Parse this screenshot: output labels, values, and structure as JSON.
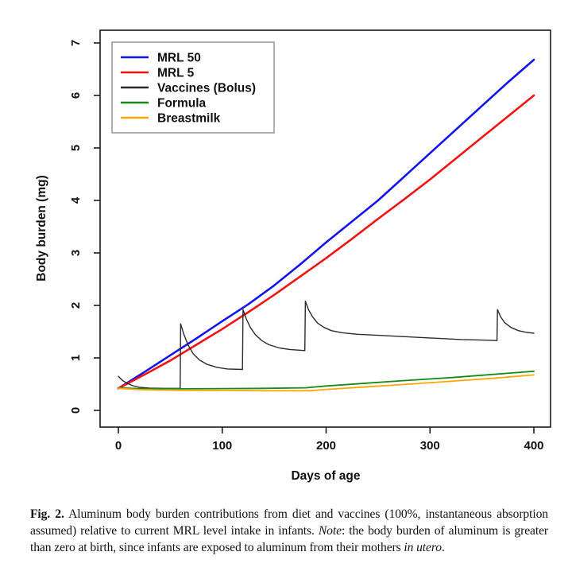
{
  "chart_data": {
    "type": "line",
    "title": "",
    "xlabel": "Days of age",
    "ylabel": "Body burden (mg)",
    "xlim": [
      0,
      400
    ],
    "ylim": [
      0,
      7
    ],
    "xticks": [
      0,
      100,
      200,
      300,
      400
    ],
    "yticks": [
      0,
      1,
      2,
      3,
      4,
      5,
      6,
      7
    ],
    "grid": false,
    "legend_position": "top-left",
    "series": [
      {
        "name": "MRL 50",
        "color": "#1414ee",
        "line_width": 2.6,
        "points": [
          [
            0,
            0.42
          ],
          [
            25,
            0.73
          ],
          [
            50,
            1.05
          ],
          [
            75,
            1.37
          ],
          [
            100,
            1.7
          ],
          [
            125,
            2.02
          ],
          [
            150,
            2.38
          ],
          [
            175,
            2.78
          ],
          [
            200,
            3.2
          ],
          [
            225,
            3.6
          ],
          [
            250,
            4.0
          ],
          [
            275,
            4.45
          ],
          [
            300,
            4.9
          ],
          [
            325,
            5.35
          ],
          [
            350,
            5.8
          ],
          [
            375,
            6.25
          ],
          [
            400,
            6.68
          ]
        ]
      },
      {
        "name": "MRL 5",
        "color": "#f01414",
        "line_width": 2.6,
        "points": [
          [
            0,
            0.42
          ],
          [
            25,
            0.68
          ],
          [
            50,
            0.95
          ],
          [
            75,
            1.25
          ],
          [
            100,
            1.55
          ],
          [
            125,
            1.87
          ],
          [
            150,
            2.2
          ],
          [
            175,
            2.55
          ],
          [
            200,
            2.9
          ],
          [
            225,
            3.27
          ],
          [
            250,
            3.65
          ],
          [
            275,
            4.02
          ],
          [
            300,
            4.4
          ],
          [
            325,
            4.8
          ],
          [
            350,
            5.2
          ],
          [
            375,
            5.6
          ],
          [
            400,
            6.0
          ]
        ]
      },
      {
        "name": "Vaccines (Bolus)",
        "color": "#2b2b2b",
        "line_width": 1.4,
        "points": [
          [
            0,
            0.65
          ],
          [
            4,
            0.57
          ],
          [
            8,
            0.52
          ],
          [
            14,
            0.47
          ],
          [
            20,
            0.44
          ],
          [
            30,
            0.425
          ],
          [
            45,
            0.42
          ],
          [
            59.5,
            0.42
          ],
          [
            60,
            1.65
          ],
          [
            63,
            1.45
          ],
          [
            67,
            1.25
          ],
          [
            72,
            1.08
          ],
          [
            78,
            0.96
          ],
          [
            85,
            0.88
          ],
          [
            95,
            0.82
          ],
          [
            105,
            0.79
          ],
          [
            119.5,
            0.78
          ],
          [
            120,
            1.92
          ],
          [
            123,
            1.75
          ],
          [
            127,
            1.58
          ],
          [
            132,
            1.44
          ],
          [
            138,
            1.33
          ],
          [
            145,
            1.25
          ],
          [
            155,
            1.19
          ],
          [
            165,
            1.16
          ],
          [
            179.5,
            1.14
          ],
          [
            180,
            2.08
          ],
          [
            183,
            1.92
          ],
          [
            187,
            1.78
          ],
          [
            192,
            1.66
          ],
          [
            198,
            1.58
          ],
          [
            205,
            1.52
          ],
          [
            215,
            1.48
          ],
          [
            230,
            1.45
          ],
          [
            250,
            1.43
          ],
          [
            270,
            1.41
          ],
          [
            290,
            1.39
          ],
          [
            310,
            1.37
          ],
          [
            330,
            1.35
          ],
          [
            350,
            1.34
          ],
          [
            364.5,
            1.33
          ],
          [
            365,
            1.92
          ],
          [
            368,
            1.78
          ],
          [
            372,
            1.67
          ],
          [
            378,
            1.58
          ],
          [
            385,
            1.52
          ],
          [
            392,
            1.49
          ],
          [
            400,
            1.47
          ]
        ]
      },
      {
        "name": "Formula",
        "color": "#188a18",
        "line_width": 1.8,
        "points": [
          [
            0,
            0.43
          ],
          [
            20,
            0.415
          ],
          [
            60,
            0.41
          ],
          [
            100,
            0.415
          ],
          [
            140,
            0.42
          ],
          [
            180,
            0.43
          ],
          [
            200,
            0.465
          ],
          [
            240,
            0.52
          ],
          [
            280,
            0.575
          ],
          [
            320,
            0.625
          ],
          [
            360,
            0.685
          ],
          [
            400,
            0.745
          ]
        ]
      },
      {
        "name": "Breastmilk",
        "color": "#ffa509",
        "line_width": 1.8,
        "points": [
          [
            0,
            0.42
          ],
          [
            20,
            0.395
          ],
          [
            60,
            0.38
          ],
          [
            100,
            0.38
          ],
          [
            140,
            0.375
          ],
          [
            185,
            0.375
          ],
          [
            200,
            0.4
          ],
          [
            240,
            0.45
          ],
          [
            280,
            0.5
          ],
          [
            320,
            0.555
          ],
          [
            360,
            0.61
          ],
          [
            400,
            0.675
          ]
        ]
      }
    ],
    "axis_color": "#1a1a1a",
    "legend_border_color": "#7d7d7d",
    "tick_label_color": "#111111"
  },
  "caption": {
    "fig_label": "Fig. 2.",
    "part1": "  Aluminum body burden contributions from diet and vaccines (100%, instantaneous absorption assumed) relative to current MRL level intake in infants. ",
    "note_label": "Note",
    "part2": ": the body burden of aluminum is greater than zero at birth, since infants are exposed to aluminum from their mothers ",
    "part3_italic": "in utero",
    "part4": "."
  }
}
